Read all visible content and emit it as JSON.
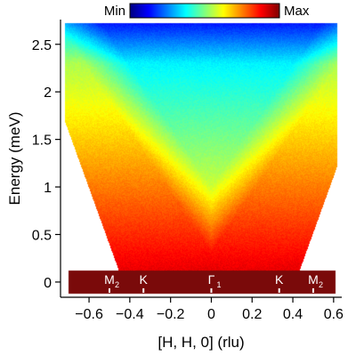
{
  "chart_data": {
    "type": "heatmap",
    "xlabel": "[H, H, 0] (rlu)",
    "ylabel": "Energy (meV)",
    "xlim": [
      -0.74,
      0.64
    ],
    "ylim": [
      -0.16,
      2.76
    ],
    "x_ticks": [
      -0.6,
      -0.4,
      -0.2,
      0,
      0.2,
      0.4,
      0.6
    ],
    "x_tick_labels": [
      "−0.6",
      "−0.4",
      "−0.2",
      "0",
      "0.2",
      "0.4",
      "0.6"
    ],
    "y_ticks": [
      0,
      0.5,
      1,
      1.5,
      2,
      2.5
    ],
    "y_tick_labels": [
      "0",
      "0.5",
      "1",
      "1.5",
      "2",
      "2.5"
    ],
    "colorbar": {
      "min_label": "Min",
      "max_label": "Max",
      "colormap": "jet"
    },
    "elastic_band": {
      "energy_range": [
        -0.12,
        0.12
      ],
      "color": "#7a0a0a"
    },
    "high_symmetry_points": [
      {
        "label": "M",
        "subscript": "2",
        "x": -0.5
      },
      {
        "label": "K",
        "subscript": "",
        "x": -0.333
      },
      {
        "label": "Γ",
        "subscript": "1",
        "x": 0.0
      },
      {
        "label": "K",
        "subscript": "",
        "x": 0.333
      },
      {
        "label": "M",
        "subscript": "2",
        "x": 0.5
      }
    ],
    "intensity_notes": {
      "dispersion_minimum_x": 0.0,
      "dispersion_minimum_energy": 0.3,
      "top_energy_cutoff": 2.72
    }
  }
}
